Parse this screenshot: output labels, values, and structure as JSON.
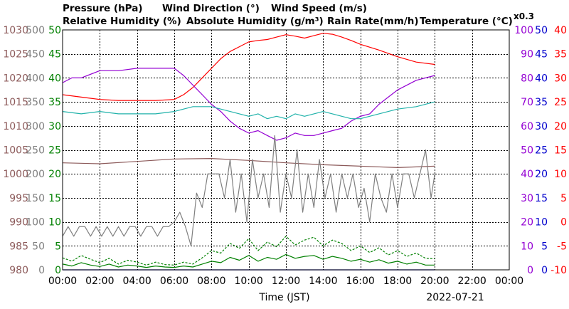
{
  "chart_data": {
    "type": "line",
    "date": "2022-07-21",
    "xlabel": "Time (JST)",
    "x_ticks": [
      "00:00",
      "02:00",
      "04:00",
      "06:00",
      "08:00",
      "10:00",
      "12:00",
      "14:00",
      "16:00",
      "18:00",
      "20:00",
      "22:00",
      "00:00"
    ],
    "x_range_hours": [
      0,
      24
    ],
    "grid": true,
    "legend": [
      {
        "text": "Pressure (hPa)",
        "color": "#8c5a5a"
      },
      {
        "text": "Wind Direction (°)",
        "color": "#808080"
      },
      {
        "text": "Wind Speed (m/s)",
        "color": "#008000"
      },
      {
        "text": "Relative Humidity (%)",
        "color": "#9400d3"
      },
      {
        "text": "Absolute Humidity (g/m³)",
        "color": "#20b2aa"
      },
      {
        "text": "Rain Rate(mm/h)",
        "color": "#0000cd"
      },
      {
        "text": "Temperature (°C)",
        "color": "#ff0000"
      },
      {
        "text": "x0.3",
        "color": "#20b2aa"
      }
    ],
    "axes": {
      "pressure": {
        "color": "#8c5a5a",
        "ylim": [
          980,
          1030
        ],
        "ticks": [
          "1030",
          "1025",
          "1020",
          "1015",
          "1010",
          "1005",
          "1000",
          "995",
          "990",
          "985",
          "980"
        ]
      },
      "wind_direction": {
        "color": "#808080",
        "ylim": [
          0,
          500
        ],
        "ticks": [
          "500",
          "450",
          "400",
          "350",
          "300",
          "250",
          "200",
          "150",
          "100",
          "50",
          "0"
        ]
      },
      "wind_speed": {
        "color": "#008000",
        "ylim": [
          0,
          50
        ],
        "ticks": [
          "50",
          "45",
          "40",
          "35",
          "30",
          "25",
          "20",
          "15",
          "10",
          "5",
          "0"
        ]
      },
      "humidity": {
        "color": "#9400d3",
        "ylim": [
          0,
          100
        ],
        "ticks": [
          "100",
          "90",
          "80",
          "70",
          "60",
          "50",
          "40",
          "30",
          "20",
          "10",
          "0"
        ]
      },
      "rain_rate": {
        "color": "#0000cd",
        "ylim": [
          0,
          50
        ],
        "ticks": [
          "50",
          "45",
          "40",
          "35",
          "30",
          "25",
          "20",
          "15",
          "10",
          "5",
          "0"
        ]
      },
      "temperature": {
        "color": "#ff0000",
        "ylim": [
          -10,
          40
        ],
        "ticks": [
          "40",
          "35",
          "30",
          "25",
          "20",
          "15",
          "10",
          "5",
          "0",
          "-5",
          "-10"
        ]
      }
    },
    "series": [
      {
        "name": "Temperature (°C)",
        "axis": "temperature",
        "color": "#ff0000",
        "x": [
          0,
          1,
          2,
          3,
          4,
          5,
          6,
          6.5,
          7,
          7.5,
          8,
          8.5,
          9,
          9.5,
          10,
          10.5,
          11,
          11.5,
          12,
          12.5,
          13,
          13.5,
          14,
          14.5,
          15,
          15.5,
          16,
          17,
          18,
          19,
          20
        ],
        "y": [
          26.5,
          26,
          25.5,
          25.3,
          25.3,
          25.3,
          25.5,
          26.5,
          28,
          30,
          32,
          34,
          35.5,
          36.5,
          37.5,
          37.8,
          38,
          38.5,
          39,
          38.7,
          38.3,
          38.8,
          39.3,
          39.1,
          38.5,
          37.8,
          37,
          35.8,
          34.4,
          33.3,
          32.8
        ]
      },
      {
        "name": "Relative Humidity (%)",
        "axis": "humidity",
        "color": "#9400d3",
        "x": [
          0,
          0.5,
          1,
          2,
          3,
          4,
          5,
          6,
          6.5,
          7,
          7.5,
          8,
          8.5,
          9,
          9.5,
          10,
          10.5,
          11,
          11.5,
          12,
          12.5,
          13,
          13.5,
          14,
          14.5,
          15,
          15.5,
          16,
          16.5,
          17,
          18,
          19,
          20
        ],
        "y": [
          78,
          80,
          80,
          83,
          83,
          84,
          84,
          84,
          81,
          77,
          73,
          69,
          66,
          62,
          59,
          57,
          58,
          56,
          54,
          55,
          57,
          56,
          56,
          57,
          58,
          59,
          62,
          64,
          65,
          69,
          75,
          79,
          81
        ]
      },
      {
        "name": "Absolute Humidity (g/m³)",
        "axis": "humidity",
        "color": "#20b2aa",
        "x": [
          0,
          1,
          2,
          3,
          4,
          5,
          6,
          6.5,
          7,
          7.5,
          8,
          8.5,
          9,
          9.5,
          10,
          10.5,
          11,
          11.5,
          12,
          12.5,
          13,
          13.5,
          14,
          14.5,
          15,
          15.5,
          16,
          16.5,
          17,
          18,
          19,
          20
        ],
        "y": [
          66,
          65,
          66,
          65,
          65,
          65,
          66,
          67,
          68,
          68,
          68,
          67,
          66,
          65,
          64,
          65,
          63,
          64,
          63,
          65,
          64,
          65,
          66,
          65,
          64,
          63,
          63,
          64,
          65,
          67,
          68,
          70
        ]
      },
      {
        "name": "Pressure (hPa)",
        "axis": "pressure",
        "color": "#8c5a5a",
        "x": [
          0,
          2,
          4,
          6,
          8,
          10,
          12,
          14,
          16,
          18,
          20
        ],
        "y": [
          1002.3,
          1002.1,
          1002.6,
          1003.1,
          1003.2,
          1002.8,
          1002.3,
          1001.9,
          1001.6,
          1001.3,
          1001.6
        ]
      },
      {
        "name": "Wind Direction (°)",
        "axis": "wind_direction",
        "color": "#808080",
        "x": [
          0,
          0.3,
          0.6,
          0.9,
          1.2,
          1.5,
          1.8,
          2.1,
          2.4,
          2.7,
          3,
          3.3,
          3.6,
          3.9,
          4.2,
          4.5,
          4.8,
          5.1,
          5.4,
          5.7,
          6,
          6.3,
          6.6,
          6.9,
          7.2,
          7.5,
          7.8,
          8.1,
          8.4,
          8.7,
          9,
          9.3,
          9.6,
          9.9,
          10.2,
          10.5,
          10.8,
          11.1,
          11.4,
          11.7,
          12,
          12.3,
          12.6,
          12.9,
          13.2,
          13.5,
          13.8,
          14.1,
          14.4,
          14.7,
          15,
          15.3,
          15.6,
          15.9,
          16.2,
          16.5,
          16.8,
          17.1,
          17.4,
          17.7,
          18,
          18.3,
          18.6,
          18.9,
          19.2,
          19.5,
          19.8,
          20
        ],
        "y": [
          70,
          90,
          70,
          90,
          90,
          70,
          90,
          70,
          90,
          70,
          90,
          70,
          90,
          90,
          70,
          90,
          90,
          70,
          90,
          90,
          100,
          120,
          90,
          50,
          160,
          130,
          200,
          200,
          200,
          150,
          230,
          120,
          200,
          100,
          230,
          150,
          200,
          130,
          280,
          120,
          200,
          150,
          250,
          120,
          200,
          130,
          230,
          150,
          200,
          120,
          200,
          150,
          200,
          130,
          170,
          100,
          200,
          150,
          120,
          200,
          130,
          200,
          200,
          150,
          200,
          250,
          150,
          200
        ]
      },
      {
        "name": "Wind Speed (m/s)",
        "axis": "wind_speed",
        "color": "#008000",
        "x": [
          0,
          0.5,
          1,
          1.5,
          2,
          2.5,
          3,
          3.5,
          4,
          4.5,
          5,
          5.5,
          6,
          6.5,
          7,
          7.5,
          8,
          8.5,
          9,
          9.5,
          10,
          10.5,
          11,
          11.5,
          12,
          12.5,
          13,
          13.5,
          14,
          14.5,
          15,
          15.5,
          16,
          16.5,
          17,
          17.5,
          18,
          18.5,
          19,
          19.5,
          20
        ],
        "y": [
          1.2,
          0.8,
          1.5,
          1,
          0.7,
          1.2,
          0.6,
          1,
          0.8,
          0.5,
          0.8,
          0.6,
          0.5,
          0.8,
          0.6,
          1.2,
          1.8,
          1.5,
          2.6,
          2,
          3,
          1.8,
          2.6,
          2.2,
          3.2,
          2.4,
          2.8,
          3,
          2.2,
          2.8,
          2.4,
          1.8,
          2.2,
          1.6,
          2.1,
          1.4,
          1.8,
          1.2,
          1.6,
          1,
          1
        ]
      },
      {
        "name": "Wind Speed (m/s)",
        "axis": "wind_speed",
        "color": "#008000",
        "dashed": true,
        "x": [
          0,
          0.5,
          1,
          1.5,
          2,
          2.5,
          3,
          3.5,
          4,
          4.5,
          5,
          5.5,
          6,
          6.5,
          7,
          7.5,
          8,
          8.5,
          9,
          9.5,
          10,
          10.5,
          11,
          11.5,
          12,
          12.5,
          13,
          13.5,
          14,
          14.5,
          15,
          15.5,
          16,
          16.5,
          17,
          17.5,
          18,
          18.5,
          19,
          19.5,
          20
        ],
        "y": [
          2.5,
          1.8,
          3,
          2.2,
          1.5,
          2.4,
          1.2,
          2,
          1.6,
          1,
          1.6,
          1.1,
          1,
          1.6,
          1.2,
          2.5,
          4,
          3.5,
          5.5,
          4.5,
          6.5,
          4,
          5.8,
          4.8,
          7,
          5.2,
          6.2,
          6.8,
          5,
          6.2,
          5.5,
          4,
          5,
          3.6,
          4.6,
          3.1,
          4,
          2.8,
          3.5,
          2.4,
          2.3
        ]
      },
      {
        "name": "Rain Rate(mm/h)",
        "axis": "rain_rate",
        "color": "#0000cd",
        "x": [
          0,
          20
        ],
        "y": [
          0,
          0
        ]
      }
    ]
  }
}
